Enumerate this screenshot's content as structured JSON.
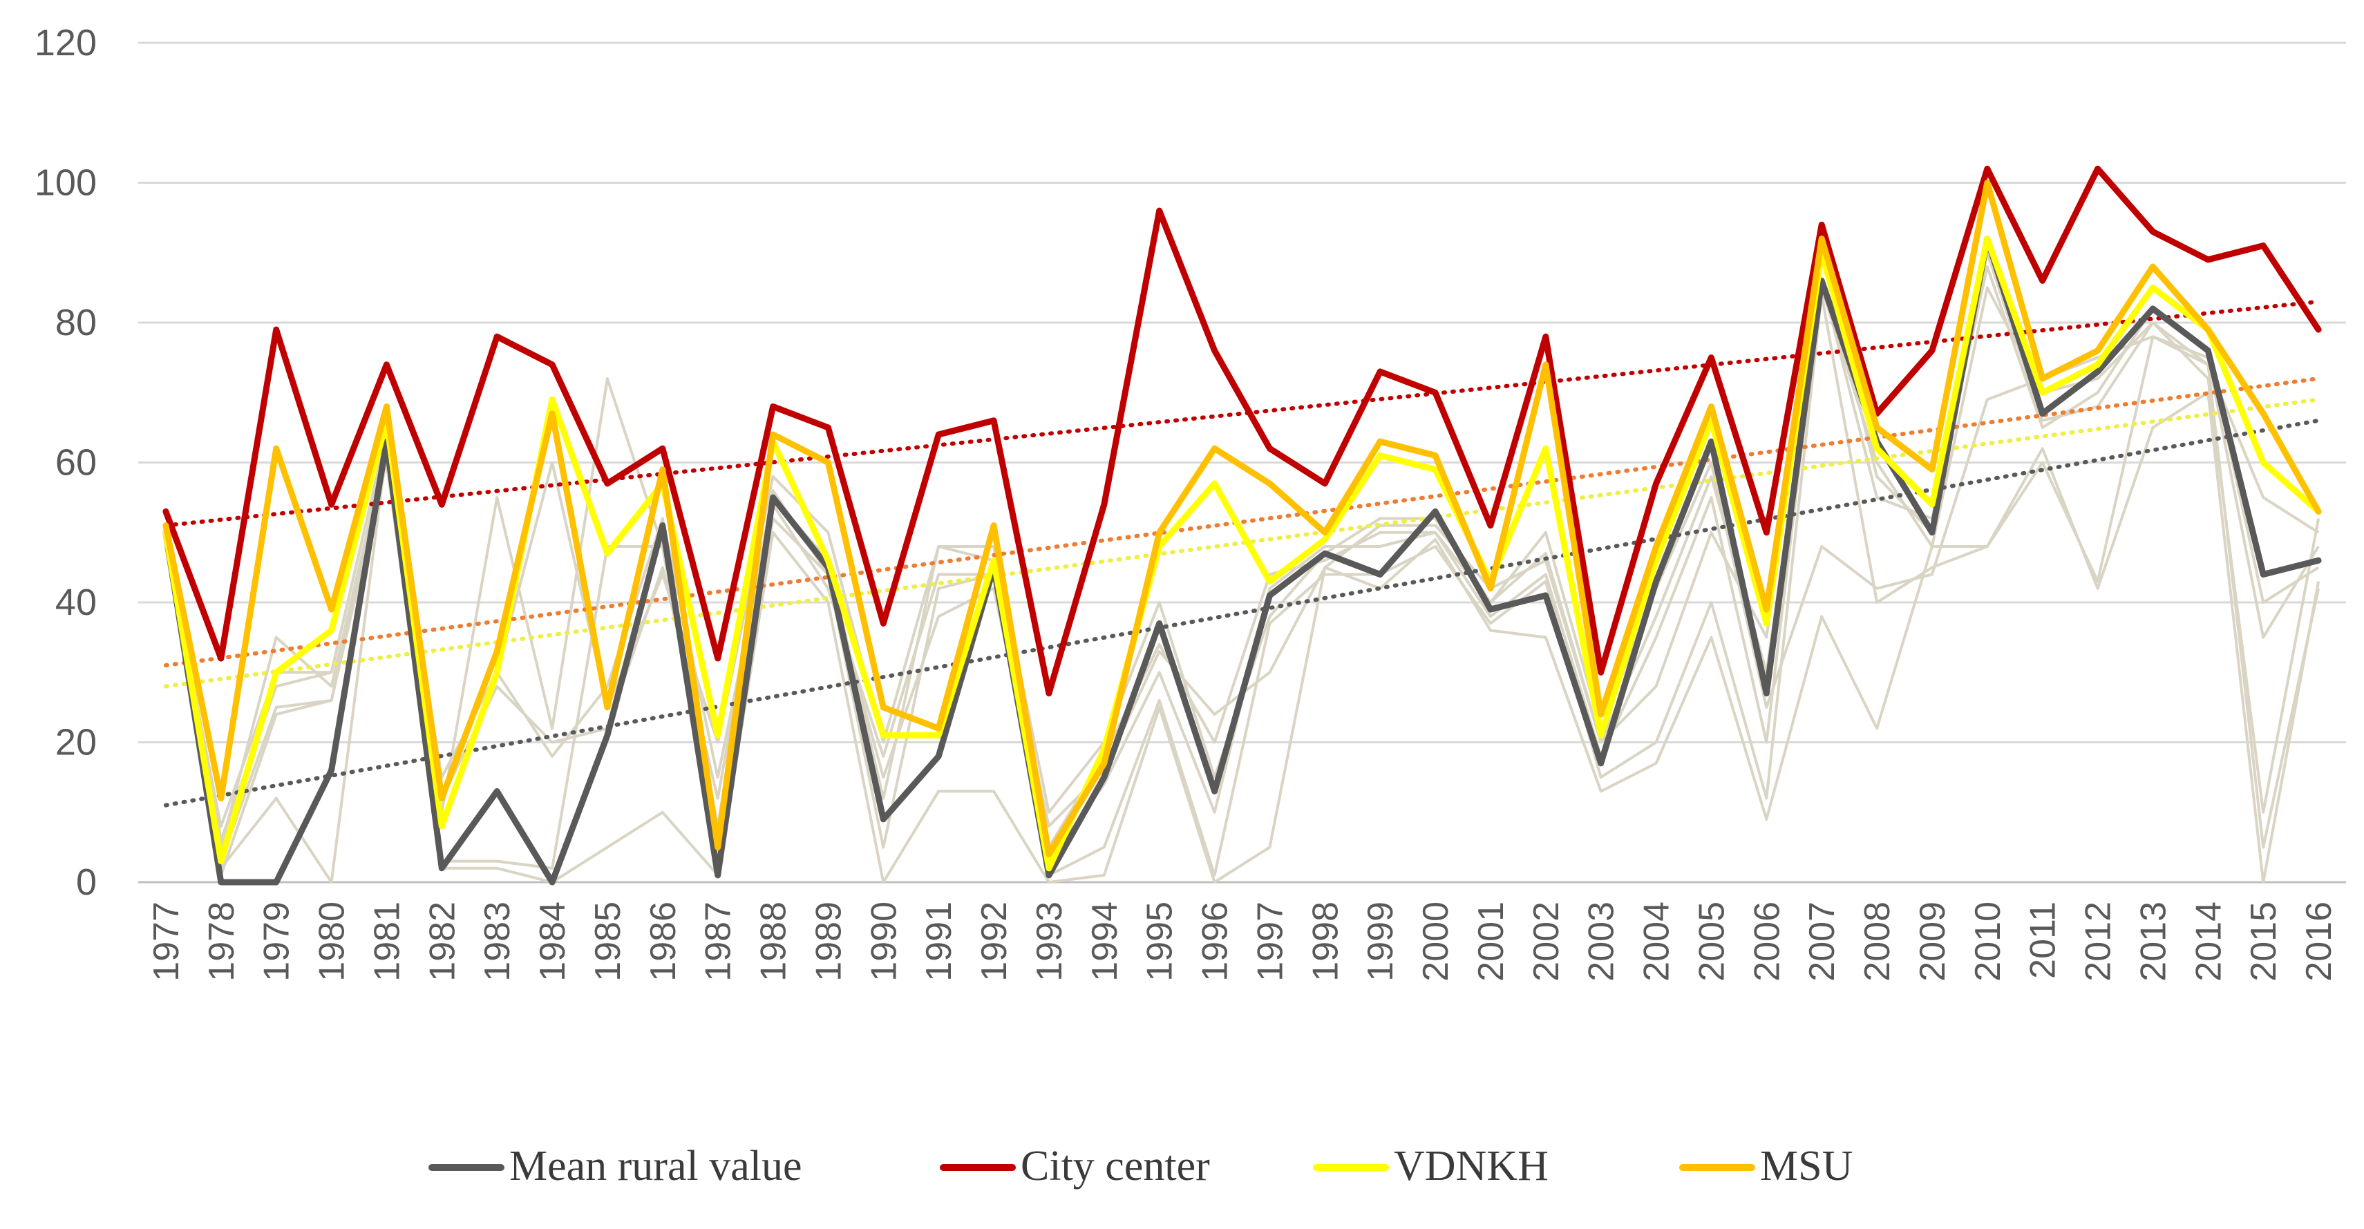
{
  "chart_data": {
    "type": "line",
    "title": "",
    "xlabel": "",
    "ylabel": "",
    "ylim": [
      0,
      120
    ],
    "yticks": [
      0,
      20,
      40,
      60,
      80,
      100,
      120
    ],
    "grid": "horizontal",
    "legend_position": "bottom",
    "categories": [
      "1977",
      "1978",
      "1979",
      "1980",
      "1981",
      "1982",
      "1983",
      "1984",
      "1985",
      "1986",
      "1987",
      "1988",
      "1989",
      "1990",
      "1991",
      "1992",
      "1993",
      "1994",
      "1995",
      "1996",
      "1997",
      "1998",
      "1999",
      "2000",
      "2001",
      "2002",
      "2003",
      "2004",
      "2005",
      "2006",
      "2007",
      "2008",
      "2009",
      "2010",
      "2011",
      "2012",
      "2013",
      "2014",
      "2015",
      "2016"
    ],
    "background_series": {
      "color": "#d9d4c3",
      "lines": [
        [
          50,
          2,
          12,
          0,
          62,
          3,
          3,
          2,
          48,
          48,
          3,
          52,
          44,
          5,
          42,
          44,
          1,
          5,
          26,
          1,
          37,
          44,
          44,
          48,
          37,
          43,
          15,
          20,
          40,
          12,
          84,
          40,
          45,
          48,
          60,
          43,
          78,
          74,
          5,
          42
        ],
        [
          48,
          8,
          30,
          30,
          64,
          12,
          28,
          20,
          22,
          45,
          12,
          56,
          44,
          15,
          38,
          42,
          5,
          18,
          34,
          20,
          44,
          46,
          50,
          50,
          40,
          47,
          20,
          38,
          58,
          30,
          85,
          60,
          48,
          85,
          70,
          72,
          80,
          74,
          55,
          50
        ],
        [
          49,
          3,
          25,
          26,
          63,
          10,
          55,
          22,
          72,
          48,
          8,
          55,
          46,
          12,
          48,
          46,
          3,
          14,
          30,
          10,
          42,
          48,
          48,
          50,
          38,
          44,
          18,
          35,
          55,
          20,
          86,
          55,
          52,
          88,
          65,
          70,
          82,
          76,
          40,
          45
        ],
        [
          48,
          1,
          24,
          26,
          60,
          2,
          2,
          0,
          5,
          10,
          1,
          50,
          40,
          0,
          13,
          13,
          0,
          1,
          25,
          0,
          5,
          45,
          42,
          49,
          36,
          35,
          13,
          17,
          35,
          9,
          38,
          22,
          48,
          48,
          62,
          42,
          65,
          70,
          0,
          43
        ],
        [
          50,
          5,
          35,
          28,
          62,
          8,
          30,
          60,
          25,
          44,
          20,
          58,
          50,
          20,
          48,
          48,
          10,
          20,
          40,
          15,
          38,
          47,
          52,
          52,
          40,
          50,
          22,
          42,
          60,
          25,
          48,
          42,
          44,
          69,
          72,
          75,
          78,
          75,
          35,
          48
        ],
        [
          51,
          6,
          28,
          30,
          64,
          15,
          30,
          18,
          28,
          52,
          15,
          54,
          42,
          18,
          44,
          44,
          8,
          16,
          33,
          24,
          30,
          45,
          51,
          51,
          42,
          46,
          20,
          28,
          50,
          35,
          90,
          58,
          50,
          90,
          66,
          68,
          80,
          72,
          10,
          52
        ]
      ]
    },
    "series": [
      {
        "name": "Mean rural value",
        "color": "#595959",
        "values": [
          50,
          0,
          0,
          16,
          63,
          2,
          13,
          0,
          21,
          51,
          1,
          55,
          45,
          9,
          18,
          45,
          1,
          15,
          37,
          13,
          41,
          47,
          44,
          53,
          39,
          41,
          17,
          43,
          63,
          27,
          86,
          63,
          50,
          92,
          67,
          73,
          82,
          76,
          44,
          46
        ],
        "trend": [
          11,
          66
        ]
      },
      {
        "name": "City center",
        "color": "#c00000",
        "values": [
          53,
          32,
          79,
          54,
          74,
          54,
          78,
          74,
          57,
          62,
          32,
          68,
          65,
          37,
          64,
          66,
          27,
          54,
          96,
          76,
          62,
          57,
          73,
          70,
          51,
          78,
          30,
          57,
          75,
          50,
          94,
          67,
          76,
          102,
          86,
          102,
          93,
          89,
          91,
          79
        ],
        "trend": [
          51,
          83
        ]
      },
      {
        "name": "VDNKH",
        "color": "#ffff00",
        "values": [
          50,
          3,
          30,
          36,
          66,
          8,
          30,
          69,
          47,
          57,
          21,
          63,
          46,
          21,
          21,
          46,
          2,
          19,
          48,
          57,
          43,
          49,
          61,
          59,
          43,
          62,
          21,
          46,
          66,
          37,
          90,
          62,
          54,
          92,
          70,
          74,
          85,
          79,
          60,
          53
        ],
        "trend": [
          28,
          69
        ]
      },
      {
        "name": "MSU",
        "color": "#ffc000",
        "values": [
          51,
          12,
          62,
          39,
          68,
          12,
          33,
          67,
          25,
          59,
          5,
          64,
          60,
          25,
          22,
          51,
          4,
          17,
          50,
          62,
          57,
          50,
          63,
          61,
          42,
          74,
          24,
          48,
          68,
          39,
          92,
          65,
          59,
          100,
          72,
          76,
          88,
          79,
          67,
          53
        ],
        "trend": [
          31,
          72
        ]
      }
    ],
    "trendline_colors": {
      "Mean rural value": "#595959",
      "City center": "#c00000",
      "VDNKH": "#eeee44",
      "MSU": "#ed7d31"
    }
  }
}
